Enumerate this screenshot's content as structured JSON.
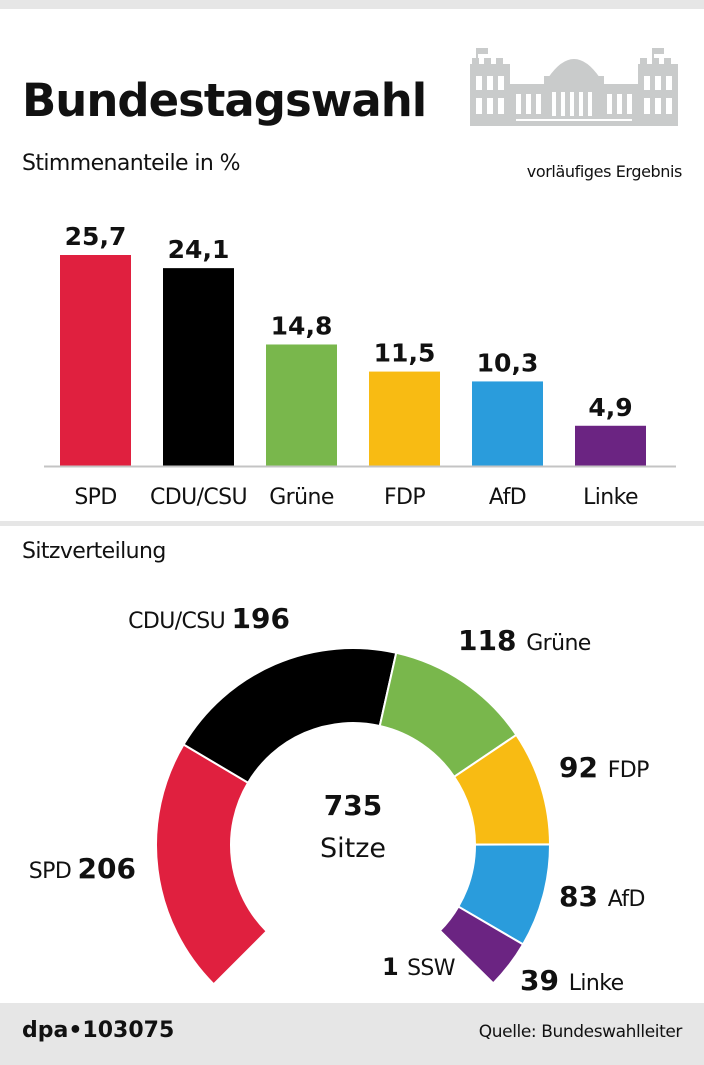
{
  "header": {
    "title": "Bundestagswahl",
    "subtitle": "Stimmenanteile in %",
    "status_note": "vorläufiges Ergebnis"
  },
  "seats_section": {
    "title": "Sitzverteilung"
  },
  "footer": {
    "credit": "dpa•103075",
    "source": "Quelle: Bundeswahlleiter"
  },
  "colors": {
    "SPD": "#e0203f",
    "CDU/CSU": "#000000",
    "Grüne": "#79b74c",
    "FDP": "#f8bb13",
    "AfD": "#2a9cdc",
    "Linke": "#6b2482",
    "SSW": "#6b2482",
    "building": "#c9cbcb",
    "divider": "#e6e6e6"
  },
  "chart_data": [
    {
      "type": "bar",
      "title": "Stimmenanteile in %",
      "categories": [
        "SPD",
        "CDU/CSU",
        "Grüne",
        "FDP",
        "AfD",
        "Linke"
      ],
      "values": [
        25.7,
        24.1,
        14.8,
        11.5,
        10.3,
        4.9
      ],
      "value_labels": [
        "25,7",
        "24,1",
        "14,8",
        "11,5",
        "10,3",
        "4,9"
      ],
      "ylim": [
        0,
        25.7
      ],
      "grid": false,
      "legend": false
    },
    {
      "type": "pie",
      "title": "Sitzverteilung",
      "center_value": "735",
      "center_label": "Sitze",
      "categories": [
        "SPD",
        "CDU/CSU",
        "Grüne",
        "FDP",
        "AfD",
        "Linke",
        "SSW"
      ],
      "values": [
        206,
        196,
        118,
        92,
        83,
        39,
        1
      ],
      "total": 735
    }
  ]
}
